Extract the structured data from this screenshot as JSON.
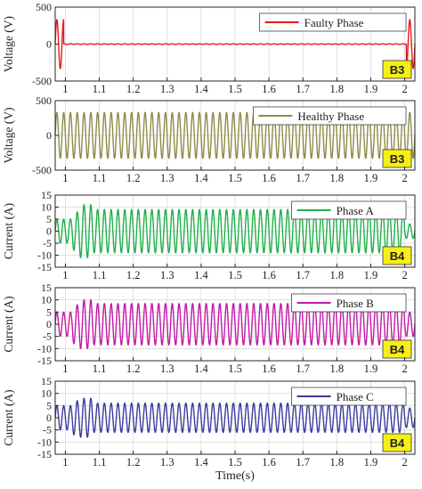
{
  "figure": {
    "xlabel": "Time(s)",
    "x_ticks": [
      1,
      1.1,
      1.2,
      1.3,
      1.4,
      1.5,
      1.6,
      1.7,
      1.8,
      1.9,
      2
    ],
    "xlim": [
      0.97,
      2.03
    ]
  },
  "chart_data": [
    {
      "type": "line",
      "ylabel": "Voltage (V)",
      "ylim": [
        -500,
        500
      ],
      "y_ticks": [
        -500,
        0,
        500
      ],
      "grid": true,
      "legend_position": "top-right",
      "badge": "B3",
      "series": [
        {
          "name": "Faulty Phase",
          "color": "#e3191c",
          "waveform": "sinusoid",
          "frequency_hz": 50,
          "amplitude_segments": [
            {
              "x": [
                0.97,
                0.995
              ],
              "peak": 330
            },
            {
              "x": [
                0.995,
                2.005
              ],
              "peak": 4
            },
            {
              "x": [
                2.005,
                2.03
              ],
              "peak": 330
            }
          ]
        }
      ]
    },
    {
      "type": "line",
      "ylabel": "Voltage (V)",
      "ylim": [
        -500,
        500
      ],
      "y_ticks": [
        -500,
        0,
        500
      ],
      "grid": true,
      "legend_position": "top-right",
      "badge": "B3",
      "series": [
        {
          "name": "Healthy Phase",
          "color": "#8c8c4a",
          "waveform": "sinusoid",
          "frequency_hz": 50,
          "amplitude_segments": [
            {
              "x": [
                0.97,
                2.03
              ],
              "peak": 330
            }
          ]
        }
      ]
    },
    {
      "type": "line",
      "ylabel": "Current (A)",
      "ylim": [
        -15,
        15
      ],
      "y_ticks": [
        -15,
        -10,
        -5,
        0,
        5,
        10,
        15
      ],
      "grid": true,
      "legend_position": "top-right",
      "badge": "B4",
      "series": [
        {
          "name": "Phase A",
          "color": "#1fb04a",
          "waveform": "sinusoid",
          "frequency_hz": 50,
          "amplitude_segments": [
            {
              "x": [
                0.97,
                1.02
              ],
              "peak": 5
            },
            {
              "x": [
                1.02,
                1.04
              ],
              "peak": 8
            },
            {
              "x": [
                1.04,
                1.08
              ],
              "peak": 11
            },
            {
              "x": [
                1.08,
                2.0
              ],
              "peak": 9
            },
            {
              "x": [
                2.0,
                2.03
              ],
              "peak": 3
            }
          ]
        }
      ]
    },
    {
      "type": "line",
      "ylabel": "Current (A)",
      "ylim": [
        -15,
        15
      ],
      "y_ticks": [
        -15,
        -10,
        -5,
        0,
        5,
        10,
        15
      ],
      "grid": true,
      "legend_position": "top-right",
      "badge": "B4",
      "series": [
        {
          "name": "Phase B",
          "color": "#c418a8",
          "waveform": "sinusoid",
          "frequency_hz": 50,
          "amplitude_segments": [
            {
              "x": [
                0.97,
                1.02
              ],
              "peak": 5
            },
            {
              "x": [
                1.02,
                1.04
              ],
              "peak": 8
            },
            {
              "x": [
                1.04,
                1.08
              ],
              "peak": 10
            },
            {
              "x": [
                1.08,
                2.0
              ],
              "peak": 8.5
            },
            {
              "x": [
                2.0,
                2.03
              ],
              "peak": 5
            }
          ]
        }
      ]
    },
    {
      "type": "line",
      "ylabel": "Current (A)",
      "ylim": [
        -15,
        15
      ],
      "y_ticks": [
        -15,
        -10,
        -5,
        0,
        5,
        10,
        15
      ],
      "grid": true,
      "legend_position": "top-right",
      "badge": "B4",
      "series": [
        {
          "name": "Phase C",
          "color": "#3a3aa0",
          "waveform": "sinusoid",
          "frequency_hz": 50,
          "amplitude_segments": [
            {
              "x": [
                0.97,
                1.02
              ],
              "peak": 5
            },
            {
              "x": [
                1.02,
                1.04
              ],
              "peak": 7
            },
            {
              "x": [
                1.04,
                1.08
              ],
              "peak": 8
            },
            {
              "x": [
                1.08,
                2.0
              ],
              "peak": 6
            },
            {
              "x": [
                2.0,
                2.03
              ],
              "peak": 4
            }
          ]
        }
      ]
    }
  ]
}
